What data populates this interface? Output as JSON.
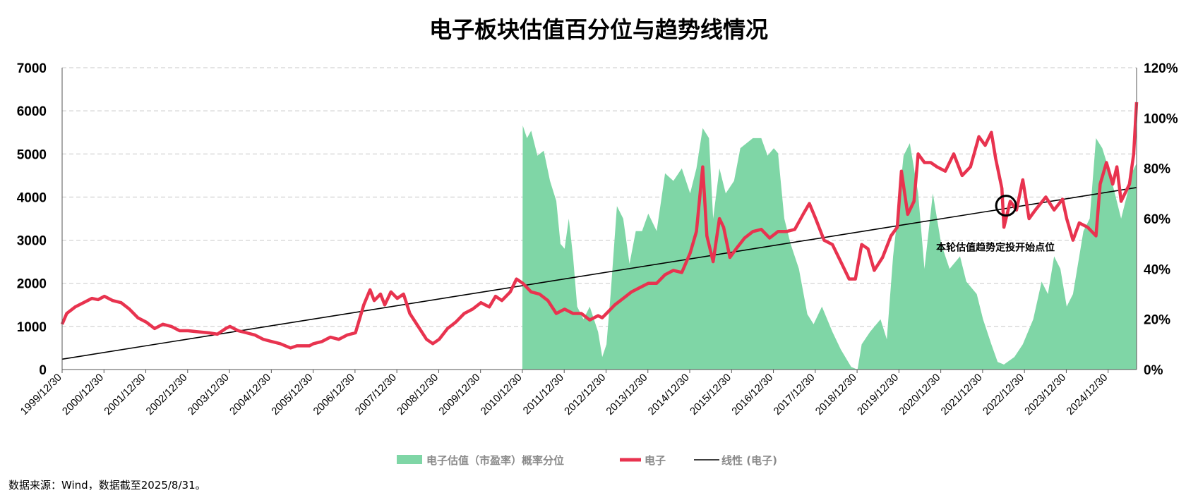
{
  "chart_data": {
    "type": "line",
    "title": "电子板块估值百分位与趋势线情况",
    "source": "数据来源：Wind，数据截至2025/8/31。",
    "annotation": "本轮估值趋势定投开始点位",
    "annotation_point": {
      "year": 2022.55,
      "value": 3800
    },
    "left_axis": {
      "min": 0,
      "max": 7000,
      "ticks": [
        0,
        1000,
        2000,
        3000,
        4000,
        5000,
        6000,
        7000
      ]
    },
    "right_axis": {
      "min": 0,
      "max": 120,
      "ticks": [
        0,
        20,
        40,
        60,
        80,
        100,
        120
      ],
      "tick_labels": [
        "0%",
        "20%",
        "40%",
        "60%",
        "80%",
        "100%",
        "120%"
      ]
    },
    "x_axis": {
      "start": 1999.99,
      "end": 2025.67,
      "tick_labels": [
        "1999/12/30",
        "2000/12/30",
        "2001/12/30",
        "2002/12/30",
        "2003/12/30",
        "2004/12/30",
        "2005/12/30",
        "2006/12/30",
        "2007/12/30",
        "2008/12/30",
        "2009/12/30",
        "2010/12/30",
        "2011/12/30",
        "2012/12/30",
        "2013/12/30",
        "2014/12/30",
        "2015/12/30",
        "2016/12/30",
        "2017/12/30",
        "2018/12/30",
        "2019/12/30",
        "2020/12/30",
        "2021/12/30",
        "2022/12/30",
        "2023/12/30",
        "2024/12/30"
      ]
    },
    "grid": true,
    "legend_position": "bottom",
    "colors": {
      "area": "#7fd6a6",
      "line": "#e8334f",
      "trend": "#000000",
      "grid": "#c8c8c8"
    },
    "series": [
      {
        "name": "电子估值（市盈率）概率分位",
        "axis": "right",
        "type": "area",
        "points": [
          [
            2010.99,
            0
          ],
          [
            2011.0,
            97
          ],
          [
            2011.1,
            92
          ],
          [
            2011.2,
            95
          ],
          [
            2011.35,
            85
          ],
          [
            2011.5,
            87
          ],
          [
            2011.65,
            75
          ],
          [
            2011.8,
            67
          ],
          [
            2011.9,
            50
          ],
          [
            2012.0,
            48
          ],
          [
            2012.1,
            60
          ],
          [
            2012.2,
            45
          ],
          [
            2012.3,
            25
          ],
          [
            2012.45,
            20
          ],
          [
            2012.6,
            25
          ],
          [
            2012.8,
            15
          ],
          [
            2012.9,
            5
          ],
          [
            2013.0,
            10
          ],
          [
            2013.1,
            30
          ],
          [
            2013.25,
            65
          ],
          [
            2013.4,
            60
          ],
          [
            2013.55,
            42
          ],
          [
            2013.7,
            55
          ],
          [
            2013.85,
            55
          ],
          [
            2014.0,
            62
          ],
          [
            2014.2,
            55
          ],
          [
            2014.4,
            78
          ],
          [
            2014.6,
            75
          ],
          [
            2014.8,
            80
          ],
          [
            2015.0,
            70
          ],
          [
            2015.15,
            80
          ],
          [
            2015.3,
            96
          ],
          [
            2015.45,
            92
          ],
          [
            2015.55,
            60
          ],
          [
            2015.7,
            80
          ],
          [
            2015.85,
            70
          ],
          [
            2016.05,
            75
          ],
          [
            2016.2,
            88
          ],
          [
            2016.35,
            90
          ],
          [
            2016.5,
            92
          ],
          [
            2016.7,
            92
          ],
          [
            2016.85,
            85
          ],
          [
            2017.0,
            88
          ],
          [
            2017.1,
            86
          ],
          [
            2017.25,
            60
          ],
          [
            2017.4,
            50
          ],
          [
            2017.6,
            40
          ],
          [
            2017.8,
            22
          ],
          [
            2017.95,
            18
          ],
          [
            2018.15,
            25
          ],
          [
            2018.4,
            15
          ],
          [
            2018.6,
            8
          ],
          [
            2018.85,
            1
          ],
          [
            2019.0,
            0
          ],
          [
            2019.1,
            10
          ],
          [
            2019.3,
            15
          ],
          [
            2019.55,
            20
          ],
          [
            2019.7,
            12
          ],
          [
            2019.85,
            45
          ],
          [
            2019.95,
            60
          ],
          [
            2020.1,
            85
          ],
          [
            2020.25,
            90
          ],
          [
            2020.45,
            70
          ],
          [
            2020.6,
            40
          ],
          [
            2020.8,
            70
          ],
          [
            2021.0,
            50
          ],
          [
            2021.2,
            40
          ],
          [
            2021.45,
            45
          ],
          [
            2021.6,
            35
          ],
          [
            2021.85,
            30
          ],
          [
            2022.0,
            20
          ],
          [
            2022.2,
            10
          ],
          [
            2022.35,
            3
          ],
          [
            2022.5,
            2
          ],
          [
            2022.75,
            5
          ],
          [
            2022.95,
            10
          ],
          [
            2023.2,
            20
          ],
          [
            2023.4,
            35
          ],
          [
            2023.55,
            30
          ],
          [
            2023.7,
            45
          ],
          [
            2023.85,
            40
          ],
          [
            2024.0,
            25
          ],
          [
            2024.15,
            30
          ],
          [
            2024.3,
            45
          ],
          [
            2024.4,
            55
          ],
          [
            2024.55,
            60
          ],
          [
            2024.7,
            92
          ],
          [
            2024.85,
            88
          ],
          [
            2025.0,
            80
          ],
          [
            2025.15,
            70
          ],
          [
            2025.3,
            60
          ],
          [
            2025.45,
            70
          ],
          [
            2025.55,
            78
          ],
          [
            2025.67,
            82
          ],
          [
            2025.67,
            0
          ]
        ]
      },
      {
        "name": "电子",
        "axis": "left",
        "type": "line",
        "points": [
          [
            1999.99,
            1050
          ],
          [
            2000.1,
            1300
          ],
          [
            2000.3,
            1450
          ],
          [
            2000.5,
            1550
          ],
          [
            2000.7,
            1650
          ],
          [
            2000.85,
            1620
          ],
          [
            2001.0,
            1700
          ],
          [
            2001.2,
            1600
          ],
          [
            2001.4,
            1550
          ],
          [
            2001.6,
            1400
          ],
          [
            2001.8,
            1200
          ],
          [
            2002.0,
            1100
          ],
          [
            2002.2,
            950
          ],
          [
            2002.4,
            1050
          ],
          [
            2002.6,
            1000
          ],
          [
            2002.8,
            900
          ],
          [
            2003.0,
            900
          ],
          [
            2003.2,
            880
          ],
          [
            2003.5,
            850
          ],
          [
            2003.7,
            820
          ],
          [
            2003.9,
            950
          ],
          [
            2004.0,
            1000
          ],
          [
            2004.2,
            900
          ],
          [
            2004.4,
            850
          ],
          [
            2004.6,
            800
          ],
          [
            2004.8,
            700
          ],
          [
            2005.0,
            650
          ],
          [
            2005.2,
            600
          ],
          [
            2005.45,
            500
          ],
          [
            2005.6,
            550
          ],
          [
            2005.9,
            550
          ],
          [
            2006.0,
            600
          ],
          [
            2006.2,
            650
          ],
          [
            2006.4,
            750
          ],
          [
            2006.6,
            700
          ],
          [
            2006.8,
            800
          ],
          [
            2007.0,
            850
          ],
          [
            2007.2,
            1500
          ],
          [
            2007.35,
            1850
          ],
          [
            2007.45,
            1600
          ],
          [
            2007.6,
            1750
          ],
          [
            2007.7,
            1500
          ],
          [
            2007.85,
            1800
          ],
          [
            2008.0,
            1650
          ],
          [
            2008.15,
            1750
          ],
          [
            2008.3,
            1300
          ],
          [
            2008.5,
            1000
          ],
          [
            2008.7,
            700
          ],
          [
            2008.85,
            600
          ],
          [
            2009.0,
            700
          ],
          [
            2009.2,
            950
          ],
          [
            2009.4,
            1100
          ],
          [
            2009.6,
            1300
          ],
          [
            2009.8,
            1400
          ],
          [
            2010.0,
            1550
          ],
          [
            2010.2,
            1450
          ],
          [
            2010.35,
            1700
          ],
          [
            2010.5,
            1600
          ],
          [
            2010.7,
            1800
          ],
          [
            2010.85,
            2100
          ],
          [
            2011.0,
            2000
          ],
          [
            2011.2,
            1800
          ],
          [
            2011.4,
            1750
          ],
          [
            2011.6,
            1600
          ],
          [
            2011.8,
            1300
          ],
          [
            2012.0,
            1400
          ],
          [
            2012.2,
            1300
          ],
          [
            2012.4,
            1300
          ],
          [
            2012.6,
            1150
          ],
          [
            2012.8,
            1250
          ],
          [
            2012.9,
            1200
          ],
          [
            2013.0,
            1300
          ],
          [
            2013.2,
            1500
          ],
          [
            2013.4,
            1650
          ],
          [
            2013.6,
            1800
          ],
          [
            2013.8,
            1900
          ],
          [
            2014.0,
            2000
          ],
          [
            2014.2,
            2000
          ],
          [
            2014.4,
            2200
          ],
          [
            2014.6,
            2300
          ],
          [
            2014.8,
            2250
          ],
          [
            2015.0,
            2700
          ],
          [
            2015.15,
            3200
          ],
          [
            2015.3,
            4700
          ],
          [
            2015.4,
            3100
          ],
          [
            2015.55,
            2500
          ],
          [
            2015.7,
            3500
          ],
          [
            2015.8,
            3300
          ],
          [
            2015.95,
            2600
          ],
          [
            2016.1,
            2800
          ],
          [
            2016.3,
            3050
          ],
          [
            2016.5,
            3200
          ],
          [
            2016.7,
            3250
          ],
          [
            2016.9,
            3050
          ],
          [
            2017.1,
            3200
          ],
          [
            2017.3,
            3200
          ],
          [
            2017.5,
            3250
          ],
          [
            2017.7,
            3600
          ],
          [
            2017.85,
            3850
          ],
          [
            2018.0,
            3500
          ],
          [
            2018.2,
            3000
          ],
          [
            2018.4,
            2900
          ],
          [
            2018.6,
            2500
          ],
          [
            2018.8,
            2100
          ],
          [
            2018.95,
            2100
          ],
          [
            2019.1,
            2900
          ],
          [
            2019.25,
            2800
          ],
          [
            2019.4,
            2300
          ],
          [
            2019.6,
            2600
          ],
          [
            2019.8,
            3100
          ],
          [
            2019.95,
            3300
          ],
          [
            2020.05,
            4600
          ],
          [
            2020.2,
            3600
          ],
          [
            2020.35,
            3900
          ],
          [
            2020.45,
            5000
          ],
          [
            2020.6,
            4800
          ],
          [
            2020.75,
            4800
          ],
          [
            2020.9,
            4700
          ],
          [
            2021.1,
            4600
          ],
          [
            2021.3,
            5000
          ],
          [
            2021.5,
            4500
          ],
          [
            2021.7,
            4700
          ],
          [
            2021.9,
            5400
          ],
          [
            2022.05,
            5200
          ],
          [
            2022.2,
            5500
          ],
          [
            2022.3,
            4900
          ],
          [
            2022.45,
            4200
          ],
          [
            2022.5,
            3300
          ],
          [
            2022.65,
            3900
          ],
          [
            2022.8,
            3700
          ],
          [
            2022.95,
            4400
          ],
          [
            2023.1,
            3500
          ],
          [
            2023.25,
            3700
          ],
          [
            2023.5,
            4000
          ],
          [
            2023.7,
            3700
          ],
          [
            2023.9,
            3950
          ],
          [
            2024.0,
            3500
          ],
          [
            2024.15,
            3000
          ],
          [
            2024.3,
            3400
          ],
          [
            2024.5,
            3300
          ],
          [
            2024.7,
            3100
          ],
          [
            2024.8,
            4300
          ],
          [
            2024.95,
            4800
          ],
          [
            2025.1,
            4300
          ],
          [
            2025.2,
            4700
          ],
          [
            2025.3,
            3900
          ],
          [
            2025.4,
            4100
          ],
          [
            2025.5,
            4300
          ],
          [
            2025.6,
            5000
          ],
          [
            2025.67,
            6200
          ]
        ]
      },
      {
        "name": "线性 (电子)",
        "axis": "left",
        "type": "line",
        "points": [
          [
            1999.99,
            240
          ],
          [
            2025.67,
            4220
          ]
        ]
      }
    ]
  }
}
